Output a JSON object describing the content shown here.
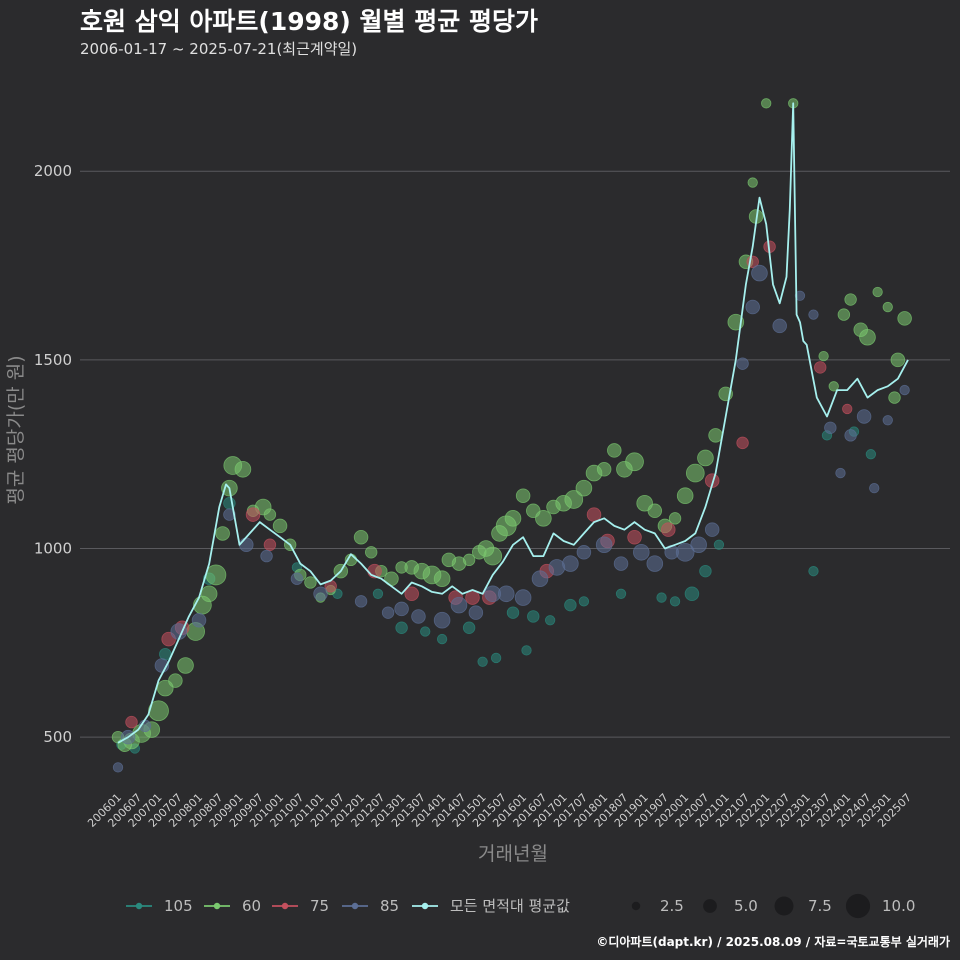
{
  "colors": {
    "background": "#2b2b2d",
    "grid": "#5a5a5e",
    "series": {
      "105": "#2a8a7e",
      "60": "#7bc96f",
      "75": "#c4505e",
      "85": "#5c6f96",
      "avg": "#a6f0ee"
    }
  },
  "chart_data": {
    "type": "scatter",
    "title": "호원 삼익 아파트(1998) 월별 평균 평당가",
    "subtitle": "2006-01-17 ~ 2025-07-21(최근계약일)",
    "xlabel": "거래년월",
    "ylabel": "평균 평당가(만 원)",
    "xlim": [
      "2006-01",
      "2025-07"
    ],
    "ylim": [
      360,
      2210
    ],
    "y_ticks": [
      500,
      1000,
      1500,
      2000
    ],
    "x_tick_labels": [
      "200601",
      "200607",
      "200701",
      "200707",
      "200801",
      "200807",
      "200901",
      "200907",
      "201001",
      "201007",
      "201101",
      "201107",
      "201201",
      "201207",
      "201301",
      "201307",
      "201401",
      "201407",
      "201501",
      "201507",
      "201601",
      "201607",
      "201701",
      "201707",
      "201801",
      "201807",
      "201901",
      "201907",
      "202001",
      "202007",
      "202101",
      "202107",
      "202201",
      "202207",
      "202301",
      "202307",
      "202401",
      "202407",
      "202501",
      "202507"
    ],
    "grid": "horizontal",
    "legend": {
      "placement": "bottom",
      "series_items": [
        "105",
        "60",
        "75",
        "85",
        "모든 면적대 평균값"
      ],
      "size_items": [
        "2.5",
        "5.0",
        "7.5",
        "10.0"
      ],
      "size_values": [
        2.5,
        5.0,
        7.5,
        10.0
      ]
    },
    "caption": "©디아파트(dapt.kr) / 2025.08.09 / 자료=국토교통부 실거래가",
    "avg_line": {
      "name": "모든 면적대 평균값",
      "x": [
        "2006-01",
        "2006-04",
        "2006-07",
        "2006-10",
        "2007-01",
        "2007-04",
        "2007-07",
        "2007-10",
        "2008-01",
        "2008-04",
        "2008-07",
        "2008-09",
        "2008-10",
        "2009-01",
        "2009-04",
        "2009-07",
        "2009-10",
        "2010-01",
        "2010-04",
        "2010-07",
        "2010-10",
        "2011-01",
        "2011-04",
        "2011-07",
        "2011-10",
        "2012-01",
        "2012-04",
        "2012-07",
        "2012-10",
        "2013-01",
        "2013-04",
        "2013-07",
        "2013-10",
        "2014-01",
        "2014-04",
        "2014-07",
        "2014-10",
        "2015-01",
        "2015-04",
        "2015-07",
        "2015-10",
        "2016-01",
        "2016-04",
        "2016-07",
        "2016-10",
        "2017-01",
        "2017-04",
        "2017-07",
        "2017-10",
        "2018-01",
        "2018-04",
        "2018-07",
        "2018-10",
        "2019-01",
        "2019-04",
        "2019-07",
        "2019-10",
        "2020-01",
        "2020-04",
        "2020-07",
        "2020-10",
        "2021-01",
        "2021-04",
        "2021-07",
        "2021-09",
        "2021-11",
        "2022-01",
        "2022-03",
        "2022-05",
        "2022-07",
        "2022-08",
        "2022-09",
        "2022-10",
        "2022-11",
        "2022-12",
        "2023-01",
        "2023-04",
        "2023-07",
        "2023-10",
        "2024-01",
        "2024-04",
        "2024-07",
        "2024-10",
        "2025-01",
        "2025-04",
        "2025-07"
      ],
      "y": [
        485,
        500,
        520,
        560,
        650,
        700,
        760,
        820,
        870,
        960,
        1110,
        1170,
        1160,
        1010,
        1040,
        1070,
        1050,
        1030,
        1010,
        960,
        940,
        905,
        915,
        940,
        985,
        960,
        930,
        920,
        900,
        880,
        910,
        900,
        885,
        880,
        900,
        880,
        890,
        880,
        930,
        965,
        1010,
        1030,
        980,
        980,
        1040,
        1020,
        1010,
        1040,
        1070,
        1080,
        1060,
        1050,
        1070,
        1050,
        1040,
        1000,
        1010,
        1020,
        1040,
        1110,
        1200,
        1350,
        1500,
        1700,
        1800,
        1930,
        1860,
        1700,
        1650,
        1720,
        1900,
        2180,
        1620,
        1600,
        1550,
        1540,
        1400,
        1350,
        1420,
        1420,
        1450,
        1400,
        1420,
        1430,
        1450,
        1500
      ]
    },
    "series": [
      {
        "name": "105",
        "points": [
          [
            "2006-02",
            480,
            3
          ],
          [
            "2006-06",
            470,
            3
          ],
          [
            "2007-03",
            720,
            4
          ],
          [
            "2008-04",
            920,
            4
          ],
          [
            "2008-10",
            1120,
            4
          ],
          [
            "2010-06",
            950,
            3
          ],
          [
            "2011-06",
            880,
            3
          ],
          [
            "2012-06",
            880,
            3
          ],
          [
            "2013-01",
            790,
            4
          ],
          [
            "2013-08",
            780,
            3
          ],
          [
            "2014-01",
            760,
            3
          ],
          [
            "2014-09",
            790,
            4
          ],
          [
            "2015-01",
            700,
            3
          ],
          [
            "2015-05",
            710,
            3
          ],
          [
            "2015-10",
            830,
            4
          ],
          [
            "2016-02",
            730,
            3
          ],
          [
            "2016-04",
            820,
            4
          ],
          [
            "2016-09",
            810,
            3
          ],
          [
            "2017-03",
            850,
            4
          ],
          [
            "2017-07",
            860,
            3
          ],
          [
            "2018-06",
            880,
            3
          ],
          [
            "2019-06",
            870,
            3
          ],
          [
            "2019-10",
            860,
            3
          ],
          [
            "2020-03",
            880,
            5
          ],
          [
            "2020-07",
            940,
            4
          ],
          [
            "2020-11",
            1010,
            3
          ],
          [
            "2023-03",
            940,
            3
          ],
          [
            "2023-07",
            1300,
            3
          ],
          [
            "2024-03",
            1310,
            3
          ],
          [
            "2024-08",
            1250,
            3
          ]
        ]
      },
      {
        "name": "60",
        "points": [
          [
            "2006-01",
            500,
            4
          ],
          [
            "2006-03",
            480,
            5
          ],
          [
            "2006-05",
            490,
            6
          ],
          [
            "2006-08",
            510,
            7
          ],
          [
            "2006-11",
            520,
            6
          ],
          [
            "2007-01",
            570,
            8
          ],
          [
            "2007-03",
            630,
            6
          ],
          [
            "2007-06",
            650,
            5
          ],
          [
            "2007-09",
            690,
            6
          ],
          [
            "2007-12",
            780,
            7
          ],
          [
            "2008-02",
            850,
            7
          ],
          [
            "2008-04",
            880,
            6
          ],
          [
            "2008-06",
            930,
            8
          ],
          [
            "2008-08",
            1040,
            5
          ],
          [
            "2008-10",
            1160,
            6
          ],
          [
            "2008-11",
            1220,
            7
          ],
          [
            "2009-02",
            1210,
            6
          ],
          [
            "2009-05",
            1100,
            4
          ],
          [
            "2009-08",
            1110,
            6
          ],
          [
            "2009-10",
            1090,
            4
          ],
          [
            "2010-01",
            1060,
            5
          ],
          [
            "2010-04",
            1010,
            4
          ],
          [
            "2010-07",
            930,
            4
          ],
          [
            "2010-10",
            910,
            4
          ],
          [
            "2011-01",
            870,
            3
          ],
          [
            "2011-04",
            890,
            3
          ],
          [
            "2011-07",
            940,
            5
          ],
          [
            "2011-10",
            970,
            4
          ],
          [
            "2012-01",
            1030,
            5
          ],
          [
            "2012-04",
            990,
            4
          ],
          [
            "2012-07",
            940,
            4
          ],
          [
            "2012-10",
            920,
            5
          ],
          [
            "2013-01",
            950,
            4
          ],
          [
            "2013-04",
            950,
            5
          ],
          [
            "2013-07",
            940,
            6
          ],
          [
            "2013-10",
            930,
            7
          ],
          [
            "2014-01",
            920,
            6
          ],
          [
            "2014-03",
            970,
            5
          ],
          [
            "2014-06",
            960,
            5
          ],
          [
            "2014-09",
            970,
            4
          ],
          [
            "2014-12",
            990,
            5
          ],
          [
            "2015-02",
            1000,
            6
          ],
          [
            "2015-04",
            980,
            7
          ],
          [
            "2015-06",
            1040,
            6
          ],
          [
            "2015-08",
            1060,
            8
          ],
          [
            "2015-10",
            1080,
            6
          ],
          [
            "2016-01",
            1140,
            5
          ],
          [
            "2016-04",
            1100,
            5
          ],
          [
            "2016-07",
            1080,
            6
          ],
          [
            "2016-10",
            1110,
            5
          ],
          [
            "2017-01",
            1120,
            6
          ],
          [
            "2017-04",
            1130,
            7
          ],
          [
            "2017-07",
            1160,
            6
          ],
          [
            "2017-10",
            1200,
            6
          ],
          [
            "2018-01",
            1210,
            5
          ],
          [
            "2018-04",
            1260,
            5
          ],
          [
            "2018-07",
            1210,
            6
          ],
          [
            "2018-10",
            1230,
            7
          ],
          [
            "2019-01",
            1120,
            6
          ],
          [
            "2019-04",
            1100,
            5
          ],
          [
            "2019-07",
            1060,
            5
          ],
          [
            "2019-10",
            1080,
            4
          ],
          [
            "2020-01",
            1140,
            6
          ],
          [
            "2020-04",
            1200,
            7
          ],
          [
            "2020-07",
            1240,
            6
          ],
          [
            "2020-10",
            1300,
            5
          ],
          [
            "2021-01",
            1410,
            5
          ],
          [
            "2021-04",
            1600,
            6
          ],
          [
            "2021-07",
            1760,
            5
          ],
          [
            "2021-10",
            1880,
            5
          ],
          [
            "2021-09",
            1970,
            3
          ],
          [
            "2022-01",
            2180,
            3
          ],
          [
            "2022-09",
            2180,
            3
          ],
          [
            "2023-06",
            1510,
            3
          ],
          [
            "2023-09",
            1430,
            3
          ],
          [
            "2023-12",
            1620,
            4
          ],
          [
            "2024-02",
            1660,
            4
          ],
          [
            "2024-05",
            1580,
            5
          ],
          [
            "2024-07",
            1560,
            6
          ],
          [
            "2024-10",
            1680,
            3
          ],
          [
            "2025-01",
            1640,
            3
          ],
          [
            "2025-04",
            1500,
            5
          ],
          [
            "2025-06",
            1610,
            5
          ],
          [
            "2025-03",
            1400,
            4
          ]
        ]
      },
      {
        "name": "75",
        "points": [
          [
            "2006-05",
            540,
            4
          ],
          [
            "2007-04",
            760,
            5
          ],
          [
            "2007-08",
            790,
            5
          ],
          [
            "2009-05",
            1090,
            5
          ],
          [
            "2009-10",
            1010,
            4
          ],
          [
            "2011-04",
            900,
            4
          ],
          [
            "2012-05",
            940,
            5
          ],
          [
            "2013-04",
            880,
            5
          ],
          [
            "2014-05",
            870,
            5
          ],
          [
            "2014-10",
            870,
            5
          ],
          [
            "2015-03",
            870,
            5
          ],
          [
            "2016-08",
            940,
            5
          ],
          [
            "2017-10",
            1090,
            5
          ],
          [
            "2018-02",
            1020,
            5
          ],
          [
            "2018-10",
            1030,
            5
          ],
          [
            "2019-08",
            1050,
            5
          ],
          [
            "2020-09",
            1180,
            5
          ],
          [
            "2021-06",
            1280,
            4
          ],
          [
            "2021-09",
            1760,
            4
          ],
          [
            "2022-02",
            1800,
            4
          ],
          [
            "2023-05",
            1480,
            4
          ],
          [
            "2024-01",
            1370,
            3
          ]
        ]
      },
      {
        "name": "85",
        "points": [
          [
            "2006-01",
            420,
            3
          ],
          [
            "2006-04",
            500,
            5
          ],
          [
            "2006-09",
            530,
            4
          ],
          [
            "2007-02",
            690,
            5
          ],
          [
            "2007-07",
            780,
            6
          ],
          [
            "2008-01",
            810,
            5
          ],
          [
            "2008-10",
            1090,
            4
          ],
          [
            "2009-03",
            1010,
            5
          ],
          [
            "2009-09",
            980,
            4
          ],
          [
            "2010-06",
            920,
            4
          ],
          [
            "2011-01",
            880,
            5
          ],
          [
            "2012-01",
            860,
            4
          ],
          [
            "2012-09",
            830,
            4
          ],
          [
            "2013-01",
            840,
            5
          ],
          [
            "2013-06",
            820,
            5
          ],
          [
            "2014-01",
            810,
            6
          ],
          [
            "2014-06",
            850,
            6
          ],
          [
            "2014-11",
            830,
            5
          ],
          [
            "2015-04",
            880,
            6
          ],
          [
            "2015-08",
            880,
            6
          ],
          [
            "2016-01",
            870,
            6
          ],
          [
            "2016-06",
            920,
            6
          ],
          [
            "2016-11",
            950,
            6
          ],
          [
            "2017-03",
            960,
            6
          ],
          [
            "2017-07",
            990,
            5
          ],
          [
            "2018-01",
            1010,
            6
          ],
          [
            "2018-06",
            960,
            5
          ],
          [
            "2018-12",
            990,
            6
          ],
          [
            "2019-04",
            960,
            6
          ],
          [
            "2019-09",
            990,
            5
          ],
          [
            "2020-01",
            990,
            7
          ],
          [
            "2020-05",
            1010,
            6
          ],
          [
            "2020-09",
            1050,
            5
          ],
          [
            "2021-06",
            1490,
            4
          ],
          [
            "2021-09",
            1640,
            5
          ],
          [
            "2021-11",
            1730,
            6
          ],
          [
            "2022-05",
            1590,
            5
          ],
          [
            "2022-11",
            1670,
            3
          ],
          [
            "2023-03",
            1620,
            3
          ],
          [
            "2023-08",
            1320,
            4
          ],
          [
            "2023-11",
            1200,
            3
          ],
          [
            "2024-02",
            1300,
            4
          ],
          [
            "2024-06",
            1350,
            5
          ],
          [
            "2024-09",
            1160,
            3
          ],
          [
            "2025-01",
            1340,
            3
          ],
          [
            "2025-06",
            1420,
            3
          ]
        ]
      }
    ]
  }
}
